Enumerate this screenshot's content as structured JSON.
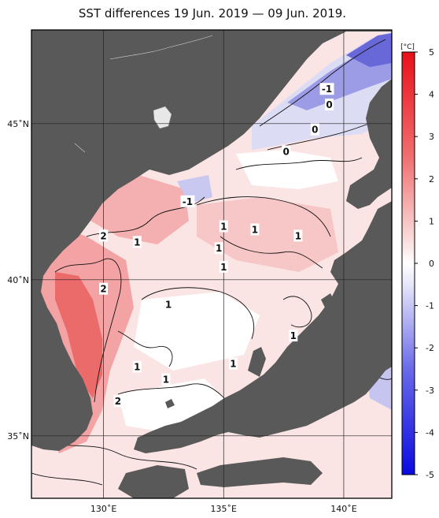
{
  "title": "SST differences 19 Jun. 2019 — 09 Jun. 2019.",
  "map": {
    "lon_range": [
      127,
      142
    ],
    "lat_range": [
      33,
      48
    ],
    "lon_ticks": [
      {
        "value": 130,
        "label": "130˚E"
      },
      {
        "value": 135,
        "label": "135˚E"
      },
      {
        "value": 140,
        "label": "140˚E"
      }
    ],
    "lat_ticks": [
      {
        "value": 45,
        "label": "45˚N"
      },
      {
        "value": 40,
        "label": "40˚N"
      },
      {
        "value": 35,
        "label": "35˚N"
      }
    ],
    "land_color": "#595959",
    "grid": true
  },
  "colorbar": {
    "unit": "[°C]",
    "range": [
      -5,
      5
    ],
    "ticks": [
      "5",
      "4",
      "3",
      "2",
      "1",
      "0",
      "-1",
      "-2",
      "-3",
      "-4",
      "-5"
    ],
    "colors": {
      "warm": "#e8101a",
      "neutral": "#ffffff",
      "cool": "#1414e0"
    }
  },
  "contour_labels": [
    {
      "text": "-1",
      "lon": 139.3,
      "lat": 46.1
    },
    {
      "text": "0",
      "lon": 139.4,
      "lat": 45.6
    },
    {
      "text": "0",
      "lon": 138.8,
      "lat": 44.8
    },
    {
      "text": "0",
      "lon": 137.6,
      "lat": 44.1
    },
    {
      "text": "-1",
      "lon": 133.5,
      "lat": 42.5
    },
    {
      "text": "1",
      "lon": 135.0,
      "lat": 41.7
    },
    {
      "text": "1",
      "lon": 136.3,
      "lat": 41.6
    },
    {
      "text": "2",
      "lon": 130.0,
      "lat": 41.4
    },
    {
      "text": "1",
      "lon": 131.4,
      "lat": 41.2
    },
    {
      "text": "1",
      "lon": 134.8,
      "lat": 41.0
    },
    {
      "text": "1",
      "lon": 138.1,
      "lat": 41.4
    },
    {
      "text": "1",
      "lon": 135.0,
      "lat": 40.4
    },
    {
      "text": "2",
      "lon": 130.0,
      "lat": 39.7
    },
    {
      "text": "1",
      "lon": 132.7,
      "lat": 39.2
    },
    {
      "text": "1",
      "lon": 137.9,
      "lat": 38.2
    },
    {
      "text": "1",
      "lon": 131.4,
      "lat": 37.2
    },
    {
      "text": "1",
      "lon": 135.4,
      "lat": 37.3
    },
    {
      "text": "1",
      "lon": 132.6,
      "lat": 36.8
    },
    {
      "text": "2",
      "lon": 130.6,
      "lat": 36.1
    }
  ]
}
